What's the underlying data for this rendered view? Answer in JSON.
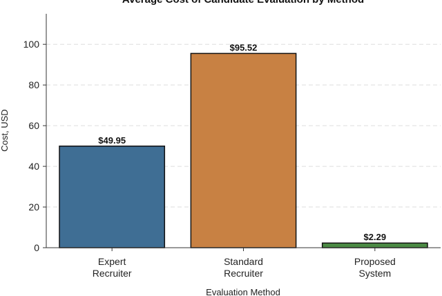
{
  "chart_data": {
    "type": "bar",
    "title": "Average Cost of Candidate Evaluation by Method",
    "xlabel": "Evaluation Method",
    "ylabel": "Cost, USD",
    "categories": [
      [
        "Expert",
        "Recruiter"
      ],
      [
        "Standard",
        "Recruiter"
      ],
      [
        "Proposed",
        "System"
      ]
    ],
    "values": [
      49.95,
      95.52,
      2.29
    ],
    "data_labels": [
      "$49.95",
      "$95.52",
      "$2.29"
    ],
    "colors": [
      "#3f6e94",
      "#c88143",
      "#4b8a44"
    ],
    "ylim": [
      0,
      115
    ],
    "yticks": [
      0,
      20,
      40,
      60,
      80,
      100
    ],
    "grid": "horizontal-dashed"
  }
}
